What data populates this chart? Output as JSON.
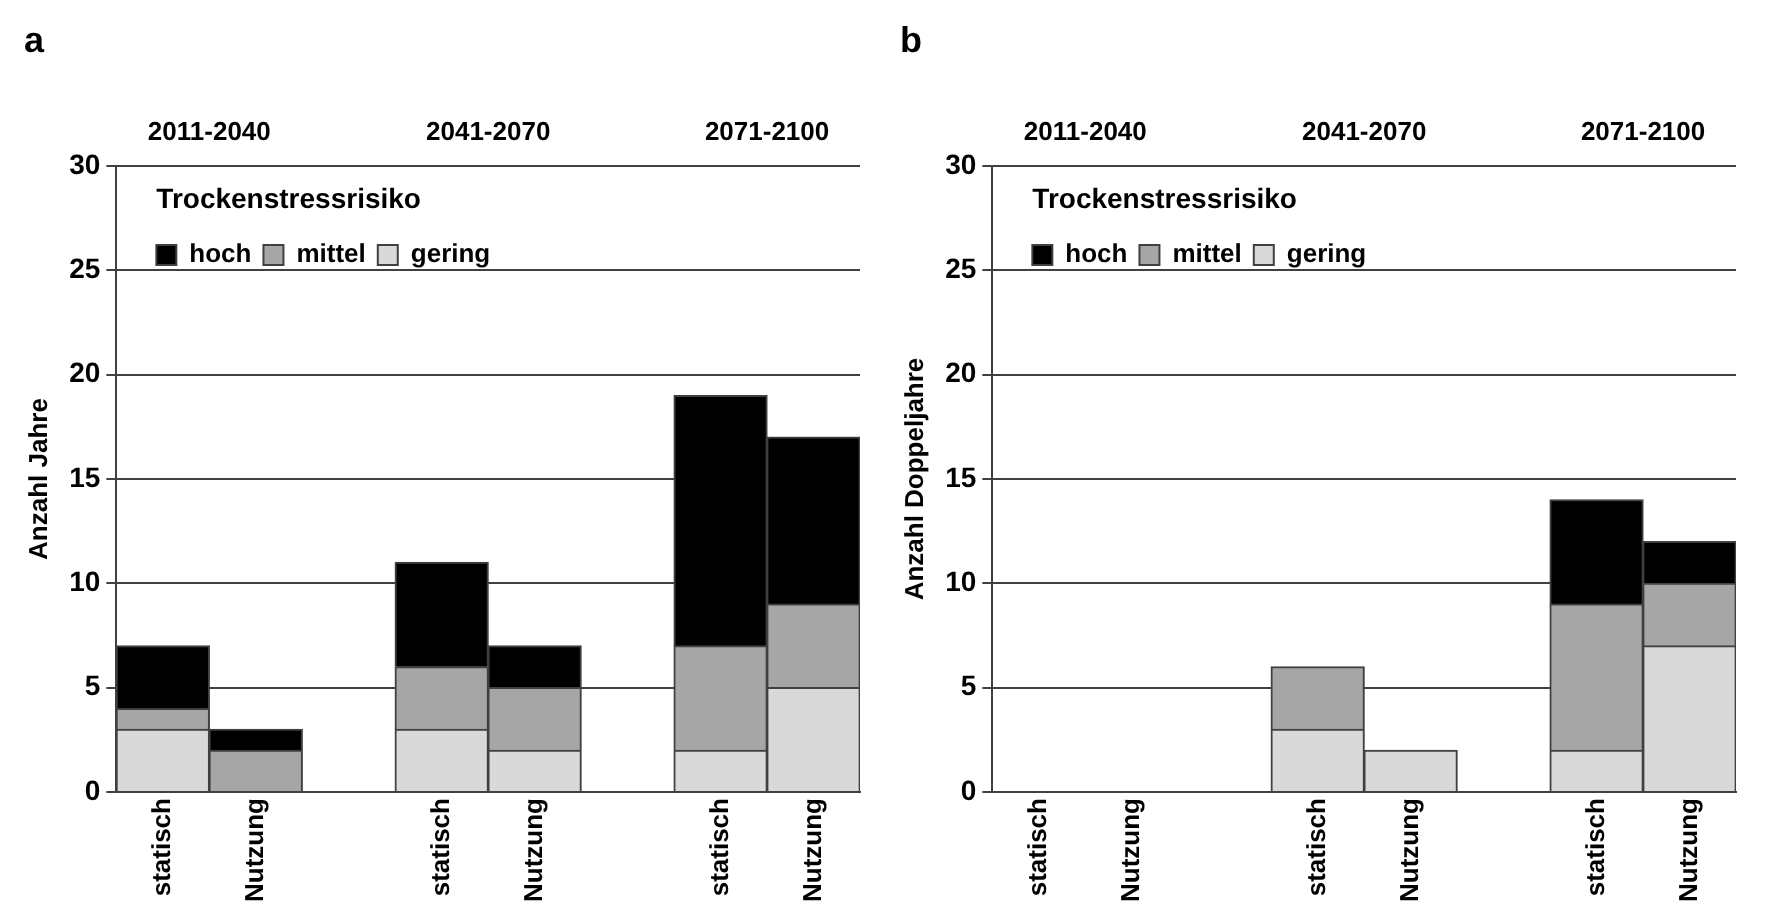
{
  "chart_data": [
    {
      "type": "bar",
      "title": "a",
      "ylabel": "Anzahl Jahre",
      "legend_title": "Trockenstressrisiko",
      "annotations": [
        "2011-2040",
        "2041-2070",
        "2071-2100"
      ],
      "categories": [
        "statisch",
        "Nutzung",
        null,
        "statisch",
        "Nutzung",
        null,
        "statisch",
        "Nutzung"
      ],
      "stacked": true,
      "ylim": [
        0,
        30
      ],
      "yticks": [
        0,
        5,
        10,
        15,
        20,
        25,
        30
      ],
      "grid": "y",
      "legend": "top left",
      "series": [
        {
          "name": "gering",
          "color": "#d9d9d9",
          "values": [
            3,
            0,
            null,
            3,
            2,
            null,
            2,
            5
          ]
        },
        {
          "name": "mittel",
          "color": "#a6a6a6",
          "values": [
            1,
            2,
            null,
            3,
            3,
            null,
            5,
            4
          ]
        },
        {
          "name": "hoch",
          "color": "#000000",
          "values": [
            3,
            1,
            null,
            5,
            2,
            null,
            12,
            8
          ]
        }
      ]
    },
    {
      "type": "bar",
      "title": "b",
      "ylabel": "Anzahl Doppeljahre",
      "legend_title": "Trockenstressrisiko",
      "annotations": [
        "2011-2040",
        "2041-2070",
        "2071-2100"
      ],
      "categories": [
        "statisch",
        "Nutzung",
        null,
        "statisch",
        "Nutzung",
        null,
        "statisch",
        "Nutzung"
      ],
      "stacked": true,
      "ylim": [
        0,
        30
      ],
      "yticks": [
        0,
        5,
        10,
        15,
        20,
        25,
        30
      ],
      "grid": "y",
      "legend": "top left",
      "series": [
        {
          "name": "gering",
          "color": "#d9d9d9",
          "values": [
            0,
            0,
            null,
            3,
            2,
            null,
            2,
            7
          ]
        },
        {
          "name": "mittel",
          "color": "#a6a6a6",
          "values": [
            0,
            0,
            null,
            3,
            0,
            null,
            7,
            3
          ]
        },
        {
          "name": "hoch",
          "color": "#000000",
          "values": [
            0,
            0,
            null,
            0,
            0,
            null,
            5,
            2
          ]
        }
      ]
    }
  ]
}
